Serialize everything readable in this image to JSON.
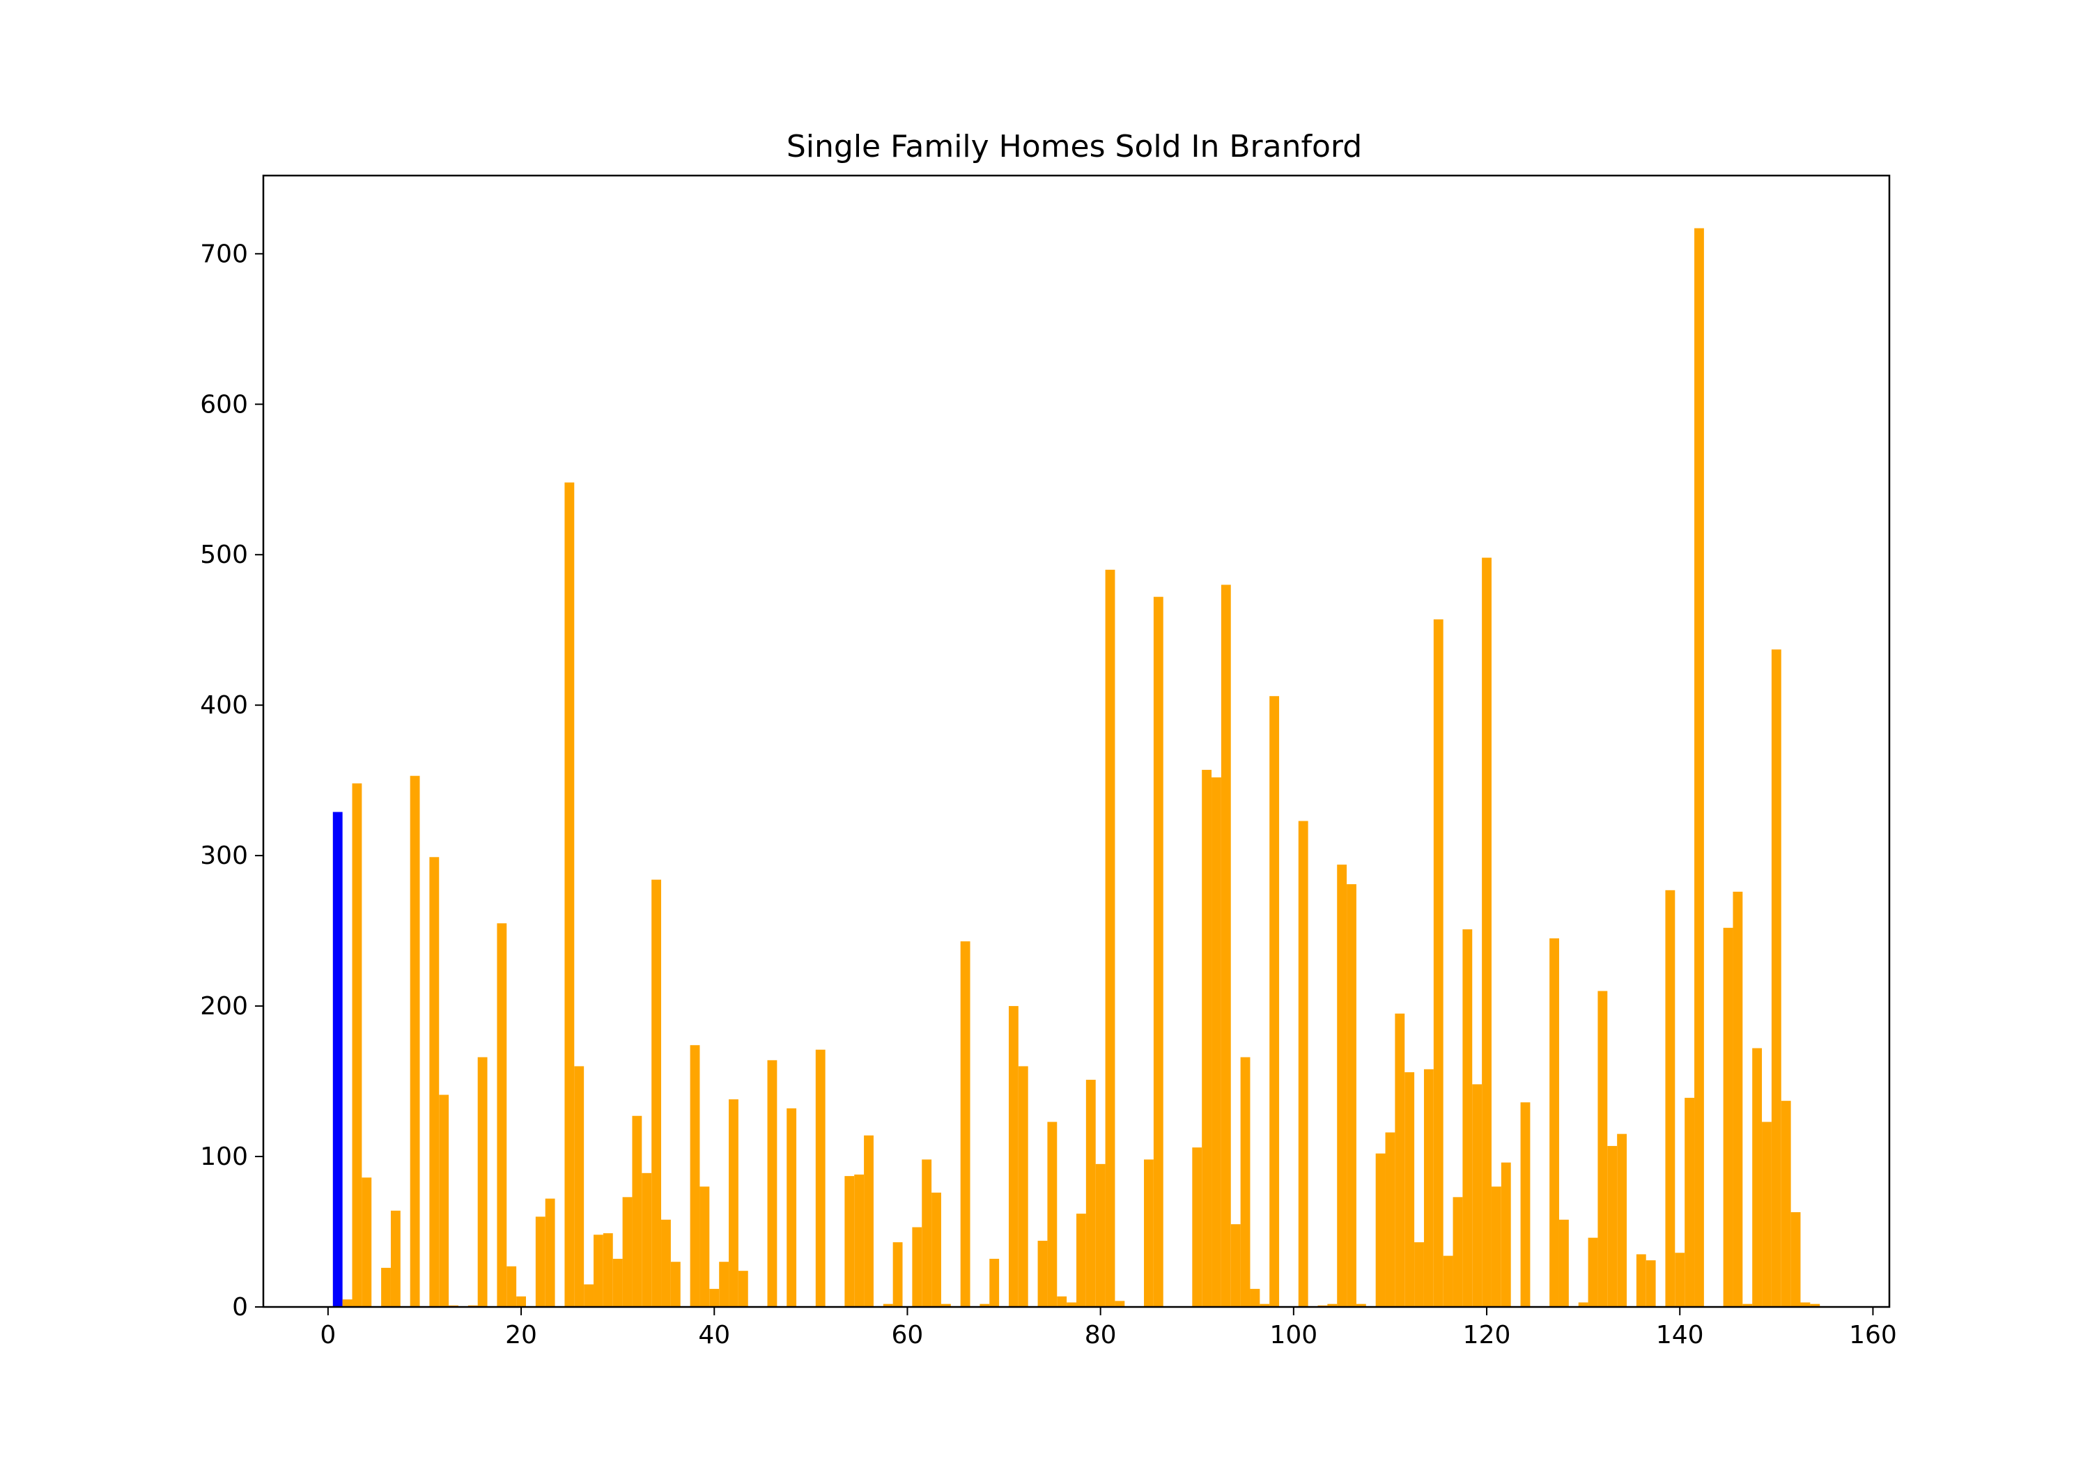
{
  "chart_data": {
    "type": "bar",
    "title": "Single Family Homes Sold In Branford",
    "xlabel": "",
    "ylabel": "",
    "xlim": [
      -6.7,
      161.7
    ],
    "ylim": [
      0,
      752
    ],
    "x_ticks": [
      0,
      20,
      40,
      60,
      80,
      100,
      120,
      140,
      160
    ],
    "y_ticks": [
      0,
      100,
      200,
      300,
      400,
      500,
      600,
      700
    ],
    "grid": false,
    "legend": "none",
    "colors": {
      "default": "#FFA500",
      "highlight": "#0000FF"
    },
    "highlight_index": 1,
    "x_start": 0,
    "values": [
      0,
      329,
      5,
      348,
      86,
      0,
      26,
      64,
      0,
      353,
      0,
      299,
      141,
      1,
      0,
      1,
      166,
      0,
      255,
      27,
      7,
      0,
      60,
      72,
      0,
      548,
      160,
      15,
      48,
      49,
      32,
      73,
      127,
      89,
      284,
      58,
      30,
      0,
      174,
      80,
      12,
      30,
      138,
      24,
      0,
      0,
      164,
      0,
      132,
      0,
      0,
      171,
      0,
      0,
      87,
      88,
      114,
      0,
      2,
      43,
      0,
      53,
      98,
      76,
      2,
      0,
      243,
      0,
      2,
      32,
      0,
      200,
      160,
      0,
      44,
      123,
      7,
      3,
      62,
      151,
      95,
      490,
      4,
      0,
      0,
      98,
      472,
      0,
      0,
      0,
      106,
      357,
      352,
      480,
      55,
      166,
      12,
      2,
      406,
      0,
      0,
      323,
      0,
      1,
      2,
      294,
      281,
      2,
      0,
      102,
      116,
      195,
      156,
      43,
      158,
      457,
      34,
      73,
      251,
      148,
      498,
      80,
      96,
      0,
      136,
      0,
      0,
      245,
      58,
      0,
      3,
      46,
      210,
      107,
      115,
      0,
      35,
      31,
      0,
      277,
      36,
      139,
      717,
      0,
      0,
      252,
      276,
      2,
      172,
      123,
      437,
      137,
      63,
      3,
      2
    ]
  }
}
